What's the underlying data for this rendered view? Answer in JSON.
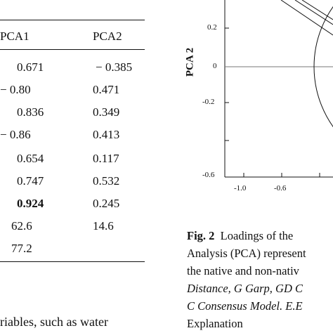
{
  "table": {
    "headers": [
      "PCA1",
      "PCA2"
    ],
    "rows": [
      {
        "pca1": "0.671",
        "pca2": "− 0.385"
      },
      {
        "pca1": "− 0.80",
        "pca2": "0.471"
      },
      {
        "pca1": "0.836",
        "pca2": "0.349"
      },
      {
        "pca1": "− 0.86",
        "pca2": "0.413"
      },
      {
        "pca1": "0.654",
        "pca2": "0.117"
      },
      {
        "pca1": "0.747",
        "pca2": "0.532"
      },
      {
        "pca1": "0.924",
        "pca2": "0.245",
        "bold_pca1": true
      },
      {
        "pca1": "62.6",
        "pca2": "14.6"
      },
      {
        "pca1": "77.2",
        "pca2": ""
      }
    ]
  },
  "body_text_fragment": "riables, such as water",
  "chart_data": {
    "type": "scatter",
    "ylabel": "PCA 2",
    "y_ticks": [
      "0.2",
      "0",
      "-0.2",
      "-0.6"
    ],
    "x_ticks": [
      "-1.0",
      "-0.6"
    ],
    "ylim": [
      -0.6,
      0.3
    ],
    "xlim": [
      -1.0,
      1.0
    ],
    "has_unit_circle": true,
    "has_zero_lines": true
  },
  "caption": {
    "fig_label": "Fig. 2",
    "line1": "Loadings of the",
    "line2": "Analysis (PCA) represent",
    "line3": "the native and non-nativ",
    "line4": "Distance, G Garp, GD C",
    "line5": "C Consensus Model. E.E",
    "line6": "Explanation"
  }
}
